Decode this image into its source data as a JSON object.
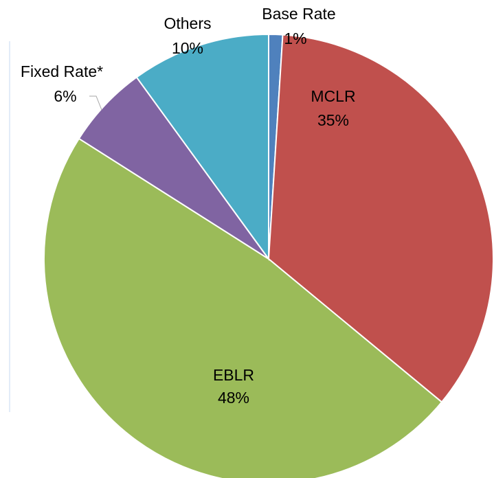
{
  "chart_data": {
    "type": "pie",
    "categories": [
      "Base Rate",
      "MCLR",
      "EBLR",
      "Fixed Rate*",
      "Others"
    ],
    "values": [
      1,
      35,
      48,
      6,
      10
    ],
    "value_labels": [
      "1%",
      "35%",
      "48%",
      "6%",
      "10%"
    ],
    "colors": [
      "#4f81bd",
      "#c0504d",
      "#9bbb59",
      "#8064a2",
      "#4bacc6"
    ]
  }
}
